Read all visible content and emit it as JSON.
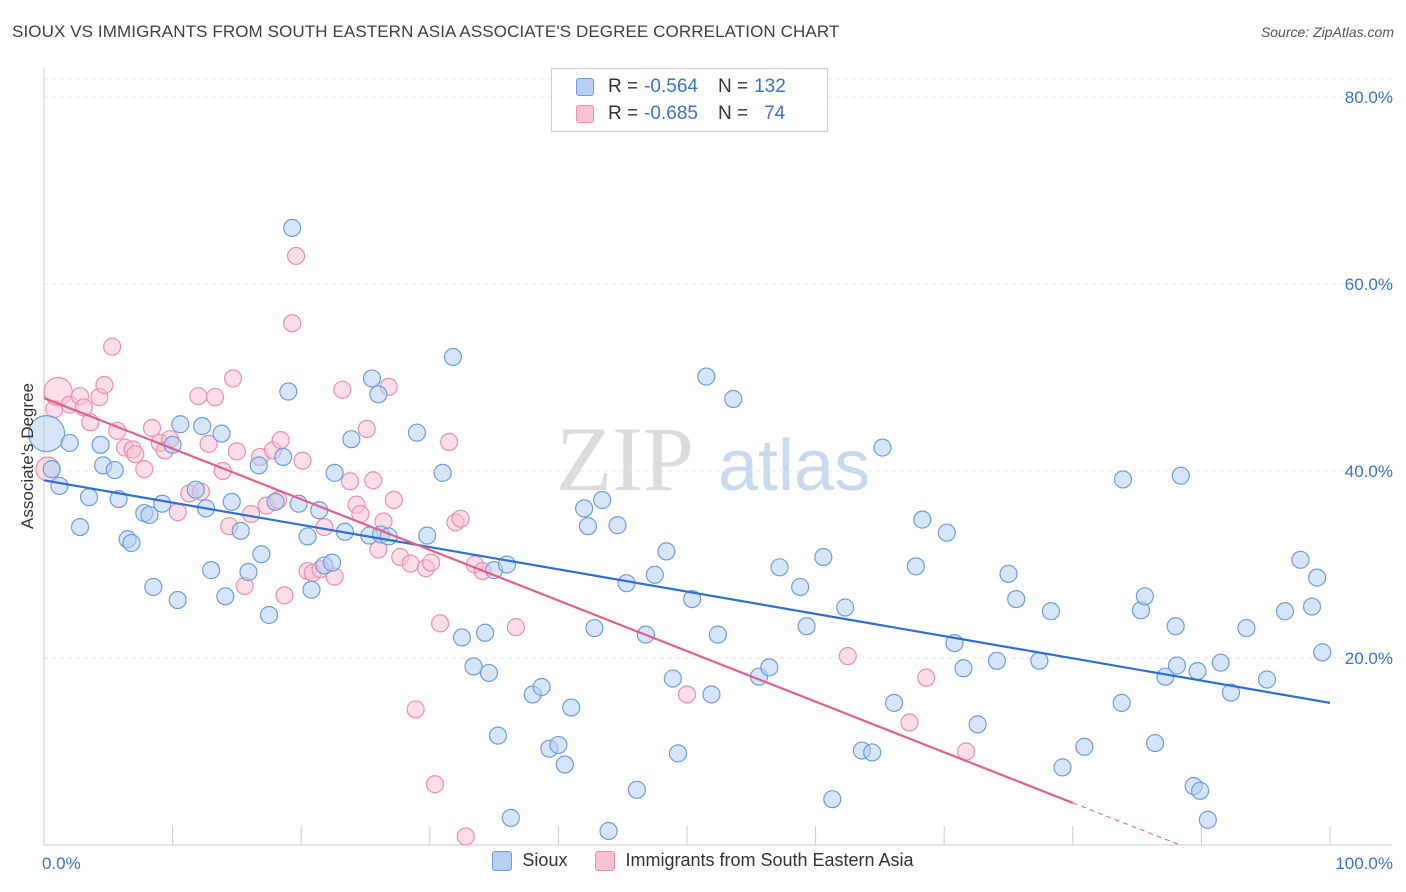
{
  "header": {
    "title": "SIOUX VS IMMIGRANTS FROM SOUTH EASTERN ASIA ASSOCIATE'S DEGREE CORRELATION CHART",
    "source": "Source: ZipAtlas.com"
  },
  "legend": {
    "rows": [
      {
        "r_label": "R =",
        "r_value": "-0.564",
        "n_label": "N =",
        "n_value": "132"
      },
      {
        "r_label": "R =",
        "r_value": "-0.685",
        "n_label": "N =",
        "n_value": "74"
      }
    ]
  },
  "bottom_legend": {
    "series1": "Sioux",
    "series2": "Immigrants from South Eastern Asia"
  },
  "watermark": {
    "part1": "ZIP",
    "part2": "atlas"
  },
  "colors": {
    "sioux_fill": "#b7d0f2",
    "sioux_stroke": "#6f9ee0",
    "sioux_line": "#2f6fcf",
    "imm_fill": "#f7c3d3",
    "imm_stroke": "#ee8fae",
    "imm_line": "#e0628c",
    "tick_text": "#3a74d0",
    "grid": "#e4e4e4"
  },
  "chart_data": {
    "type": "scatter",
    "title": "SIOUX VS IMMIGRANTS FROM SOUTH EASTERN ASIA ASSOCIATE'S DEGREE CORRELATION CHART",
    "xlabel": "",
    "ylabel": "Associate's Degree",
    "xlim": [
      0,
      100
    ],
    "ylim": [
      0,
      80
    ],
    "x_tick_labels": [
      "0.0%",
      "100.0%"
    ],
    "y_ticks": [
      20,
      40,
      60,
      80
    ],
    "y_tick_labels": [
      "20.0%",
      "40.0%",
      "60.0%",
      "80.0%"
    ],
    "grid": true,
    "legend_placement": "top-center",
    "series": [
      {
        "name": "Sioux",
        "r": -0.564,
        "n": 132,
        "trend": {
          "x0": 0,
          "y0": 39.0,
          "x1": 100,
          "y1": 15.2
        },
        "points": [
          [
            0.2,
            44.0
          ],
          [
            0.6,
            40.2
          ],
          [
            1.2,
            38.4
          ],
          [
            2.0,
            43.0
          ],
          [
            2.8,
            34.0
          ],
          [
            3.5,
            37.2
          ],
          [
            4.4,
            42.8
          ],
          [
            4.6,
            40.6
          ],
          [
            5.5,
            40.1
          ],
          [
            5.8,
            37.0
          ],
          [
            6.5,
            32.7
          ],
          [
            6.8,
            32.3
          ],
          [
            7.8,
            35.5
          ],
          [
            8.2,
            35.3
          ],
          [
            8.5,
            27.6
          ],
          [
            9.2,
            36.5
          ],
          [
            10.0,
            42.8
          ],
          [
            10.4,
            26.2
          ],
          [
            10.6,
            45.0
          ],
          [
            11.8,
            38.0
          ],
          [
            12.3,
            44.8
          ],
          [
            12.6,
            36.0
          ],
          [
            13.0,
            29.4
          ],
          [
            13.8,
            44.0
          ],
          [
            14.1,
            26.6
          ],
          [
            14.6,
            36.7
          ],
          [
            15.3,
            33.6
          ],
          [
            15.9,
            29.2
          ],
          [
            16.7,
            40.6
          ],
          [
            16.9,
            31.1
          ],
          [
            17.5,
            24.6
          ],
          [
            18.0,
            36.7
          ],
          [
            18.6,
            41.5
          ],
          [
            19.0,
            48.5
          ],
          [
            19.3,
            66.0
          ],
          [
            19.8,
            36.5
          ],
          [
            20.5,
            33.0
          ],
          [
            20.8,
            27.3
          ],
          [
            21.4,
            35.8
          ],
          [
            21.8,
            29.9
          ],
          [
            22.4,
            30.2
          ],
          [
            22.6,
            39.8
          ],
          [
            23.4,
            33.5
          ],
          [
            23.9,
            43.4
          ],
          [
            25.3,
            33.1
          ],
          [
            25.5,
            49.9
          ],
          [
            26.0,
            48.2
          ],
          [
            26.2,
            33.2
          ],
          [
            26.8,
            33.0
          ],
          [
            29.0,
            44.1
          ],
          [
            29.8,
            33.1
          ],
          [
            31.0,
            39.8
          ],
          [
            31.8,
            52.2
          ],
          [
            32.5,
            22.2
          ],
          [
            33.4,
            19.1
          ],
          [
            34.3,
            22.7
          ],
          [
            34.6,
            18.4
          ],
          [
            35.0,
            29.4
          ],
          [
            35.3,
            11.7
          ],
          [
            36.0,
            30.0
          ],
          [
            36.3,
            2.9
          ],
          [
            38.0,
            16.1
          ],
          [
            38.7,
            16.9
          ],
          [
            39.3,
            10.3
          ],
          [
            40.0,
            10.7
          ],
          [
            40.5,
            8.6
          ],
          [
            41.0,
            14.7
          ],
          [
            42.0,
            36.0
          ],
          [
            42.3,
            34.1
          ],
          [
            42.8,
            23.2
          ],
          [
            43.4,
            36.9
          ],
          [
            43.9,
            1.5
          ],
          [
            44.6,
            34.2
          ],
          [
            45.3,
            28.0
          ],
          [
            46.1,
            5.9
          ],
          [
            46.8,
            22.5
          ],
          [
            47.5,
            28.9
          ],
          [
            48.4,
            31.4
          ],
          [
            48.9,
            17.8
          ],
          [
            49.3,
            9.8
          ],
          [
            50.4,
            26.3
          ],
          [
            51.5,
            50.1
          ],
          [
            51.9,
            16.1
          ],
          [
            52.4,
            22.5
          ],
          [
            53.6,
            47.7
          ],
          [
            55.6,
            18.0
          ],
          [
            56.4,
            19.0
          ],
          [
            57.2,
            29.7
          ],
          [
            58.8,
            27.6
          ],
          [
            59.3,
            23.4
          ],
          [
            60.6,
            30.8
          ],
          [
            61.3,
            4.9
          ],
          [
            62.3,
            25.4
          ],
          [
            63.6,
            10.1
          ],
          [
            64.4,
            9.9
          ],
          [
            65.2,
            42.5
          ],
          [
            66.1,
            15.2
          ],
          [
            67.8,
            29.8
          ],
          [
            68.3,
            34.8
          ],
          [
            70.2,
            33.4
          ],
          [
            70.8,
            21.6
          ],
          [
            71.5,
            18.9
          ],
          [
            72.6,
            12.9
          ],
          [
            74.1,
            19.7
          ],
          [
            75.0,
            29.0
          ],
          [
            75.6,
            26.3
          ],
          [
            77.4,
            19.7
          ],
          [
            78.3,
            25.0
          ],
          [
            79.2,
            8.3
          ],
          [
            80.9,
            10.5
          ],
          [
            83.8,
            15.2
          ],
          [
            83.9,
            39.1
          ],
          [
            85.3,
            25.1
          ],
          [
            85.6,
            26.6
          ],
          [
            86.4,
            10.9
          ],
          [
            87.2,
            18.0
          ],
          [
            88.1,
            19.2
          ],
          [
            88.4,
            39.5
          ],
          [
            89.4,
            6.3
          ],
          [
            89.7,
            18.6
          ],
          [
            89.9,
            5.8
          ],
          [
            90.5,
            2.7
          ],
          [
            91.5,
            19.5
          ],
          [
            92.3,
            16.3
          ],
          [
            93.5,
            23.2
          ],
          [
            95.1,
            17.7
          ],
          [
            96.5,
            25.0
          ],
          [
            97.7,
            30.5
          ],
          [
            98.6,
            25.5
          ],
          [
            99.0,
            28.6
          ],
          [
            99.4,
            20.6
          ],
          [
            88.0,
            23.4
          ]
        ]
      },
      {
        "name": "Immigrants from South Eastern Asia",
        "r": -0.685,
        "n": 74,
        "trend": {
          "x0": 0,
          "y0": 47.8,
          "x1": 80,
          "y1": 4.5,
          "dash_to_x": 100,
          "dash_to_y": -6.3
        },
        "points": [
          [
            0.3,
            40.2
          ],
          [
            0.8,
            46.6
          ],
          [
            1.1,
            48.5
          ],
          [
            2.0,
            47.1
          ],
          [
            2.8,
            48.0
          ],
          [
            3.1,
            46.8
          ],
          [
            3.6,
            45.2
          ],
          [
            4.3,
            47.9
          ],
          [
            4.7,
            49.2
          ],
          [
            5.3,
            53.3
          ],
          [
            5.7,
            44.3
          ],
          [
            6.3,
            42.5
          ],
          [
            6.9,
            42.3
          ],
          [
            7.8,
            40.2
          ],
          [
            8.4,
            44.6
          ],
          [
            9.0,
            43.0
          ],
          [
            9.4,
            42.2
          ],
          [
            9.8,
            43.4
          ],
          [
            10.4,
            35.6
          ],
          [
            11.3,
            37.6
          ],
          [
            12.0,
            48.0
          ],
          [
            12.8,
            42.9
          ],
          [
            13.3,
            47.9
          ],
          [
            13.9,
            40.0
          ],
          [
            14.4,
            34.1
          ],
          [
            15.0,
            42.1
          ],
          [
            15.6,
            27.7
          ],
          [
            16.1,
            35.4
          ],
          [
            16.8,
            41.5
          ],
          [
            17.3,
            36.3
          ],
          [
            17.8,
            42.2
          ],
          [
            18.2,
            36.9
          ],
          [
            18.7,
            26.7
          ],
          [
            19.3,
            55.8
          ],
          [
            19.6,
            63.0
          ],
          [
            20.1,
            41.1
          ],
          [
            20.5,
            29.3
          ],
          [
            20.9,
            29.1
          ],
          [
            21.5,
            29.5
          ],
          [
            21.8,
            34.0
          ],
          [
            22.6,
            28.7
          ],
          [
            23.2,
            48.7
          ],
          [
            23.8,
            38.9
          ],
          [
            24.3,
            36.4
          ],
          [
            24.6,
            35.4
          ],
          [
            25.1,
            44.5
          ],
          [
            26.0,
            31.6
          ],
          [
            26.8,
            49.0
          ],
          [
            27.2,
            36.9
          ],
          [
            27.7,
            30.8
          ],
          [
            28.5,
            30.1
          ],
          [
            28.9,
            14.5
          ],
          [
            29.7,
            29.6
          ],
          [
            30.1,
            30.2
          ],
          [
            30.4,
            6.5
          ],
          [
            30.8,
            23.7
          ],
          [
            31.5,
            43.1
          ],
          [
            32.0,
            34.5
          ],
          [
            32.4,
            34.9
          ],
          [
            32.8,
            0.9
          ],
          [
            33.5,
            30.0
          ],
          [
            34.1,
            29.3
          ],
          [
            36.7,
            23.3
          ],
          [
            50.0,
            16.1
          ],
          [
            62.5,
            20.2
          ],
          [
            67.3,
            13.1
          ],
          [
            68.6,
            17.9
          ],
          [
            71.7,
            10.0
          ],
          [
            26.4,
            34.6
          ],
          [
            25.6,
            39.0
          ],
          [
            14.7,
            49.9
          ],
          [
            12.2,
            37.8
          ],
          [
            18.4,
            43.3
          ],
          [
            7.1,
            41.8
          ]
        ]
      }
    ]
  }
}
